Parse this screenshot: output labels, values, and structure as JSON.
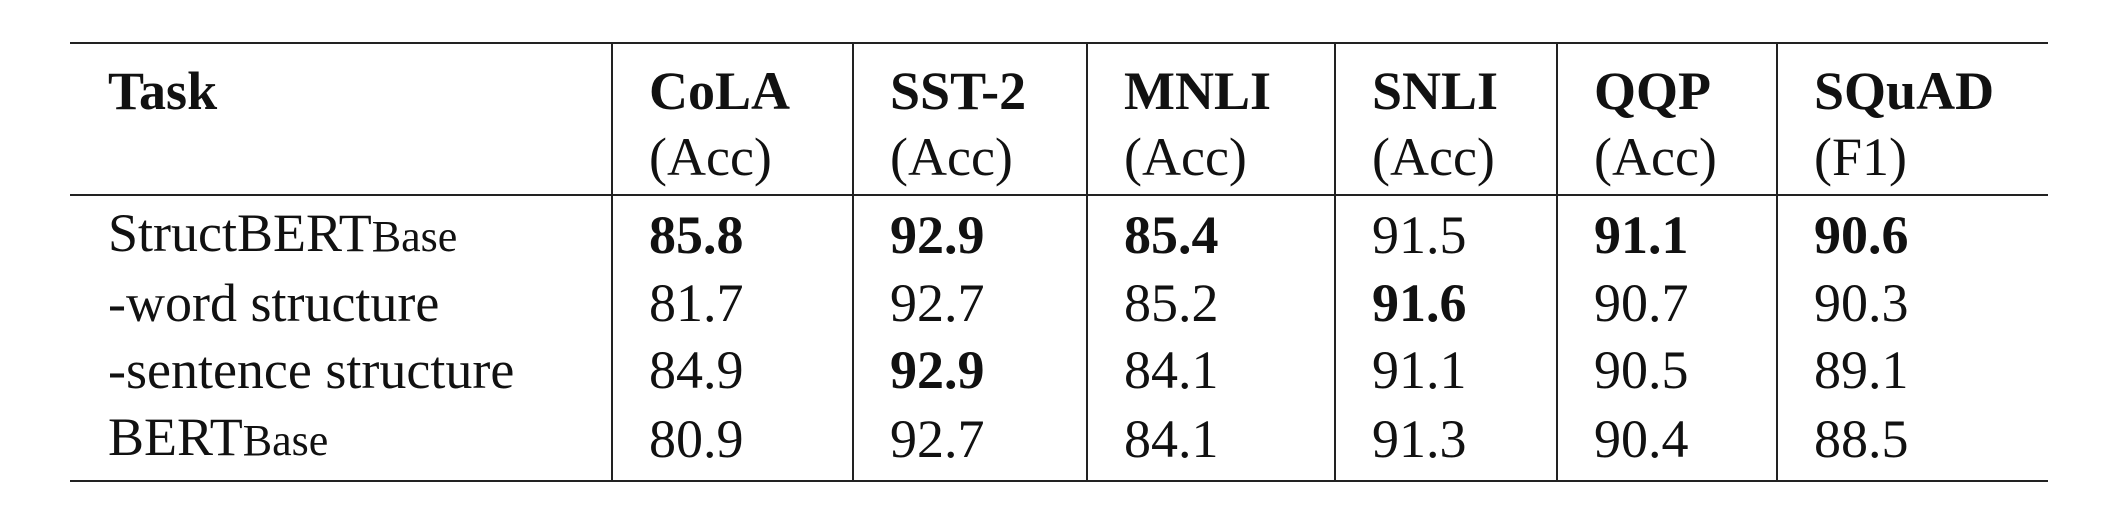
{
  "table": {
    "header": {
      "task_label": "Task",
      "columns": [
        {
          "name": "CoLA",
          "unit": "(Acc)"
        },
        {
          "name": "SST-2",
          "unit": "(Acc)"
        },
        {
          "name": "MNLI",
          "unit": "(Acc)"
        },
        {
          "name": "SNLI",
          "unit": "(Acc)"
        },
        {
          "name": "QQP",
          "unit": "(Acc)"
        },
        {
          "name": "SQuAD",
          "unit": "(F1)"
        }
      ]
    },
    "rows": [
      {
        "label_main": "StructBERT",
        "label_sub": "Base",
        "cells": [
          "85.8",
          "92.9",
          "85.4",
          "91.5",
          "91.1",
          "90.6"
        ],
        "bold": [
          true,
          true,
          true,
          false,
          true,
          true
        ]
      },
      {
        "label_main": "-word structure",
        "label_sub": "",
        "cells": [
          "81.7",
          "92.7",
          "85.2",
          "91.6",
          "90.7",
          "90.3"
        ],
        "bold": [
          false,
          false,
          false,
          true,
          false,
          false
        ]
      },
      {
        "label_main": "-sentence structure",
        "label_sub": "",
        "cells": [
          "84.9",
          "92.9",
          "84.1",
          "91.1",
          "90.5",
          "89.1"
        ],
        "bold": [
          false,
          true,
          false,
          false,
          false,
          false
        ]
      },
      {
        "label_main": "BERT",
        "label_sub": "Base",
        "cells": [
          "80.9",
          "92.7",
          "84.1",
          "91.3",
          "90.4",
          "88.5"
        ],
        "bold": [
          false,
          false,
          false,
          false,
          false,
          false
        ]
      }
    ]
  }
}
